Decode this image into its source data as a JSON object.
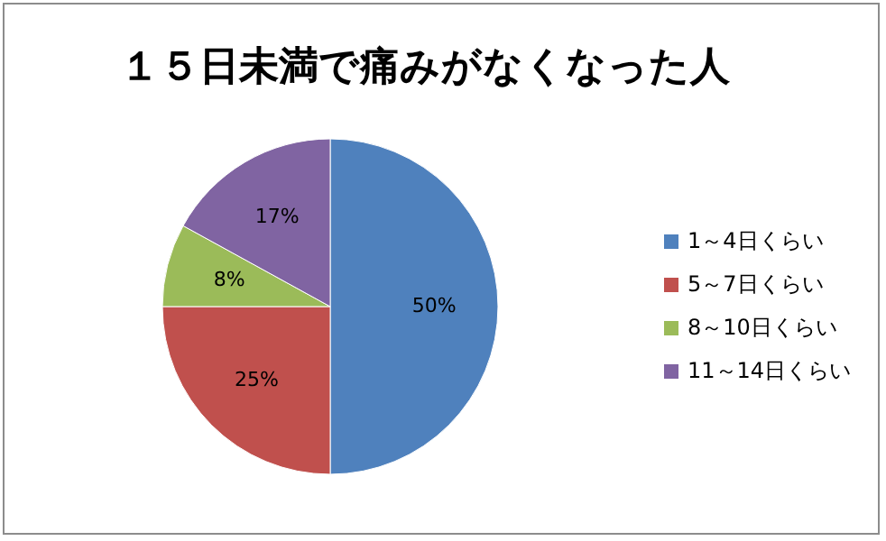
{
  "chart_data": {
    "type": "pie",
    "title": "１５日未満で痛みがなくなった人",
    "categories": [
      "1～4日くらい",
      "5～7日くらい",
      "8～10日くらい",
      "11～14日くらい"
    ],
    "values": [
      50,
      25,
      8,
      17
    ],
    "colors": [
      "#4f81bd",
      "#c0504d",
      "#9bbb59",
      "#8064a2"
    ],
    "value_labels": [
      "50%",
      "25%",
      "8%",
      "17%"
    ],
    "legend": "right"
  }
}
